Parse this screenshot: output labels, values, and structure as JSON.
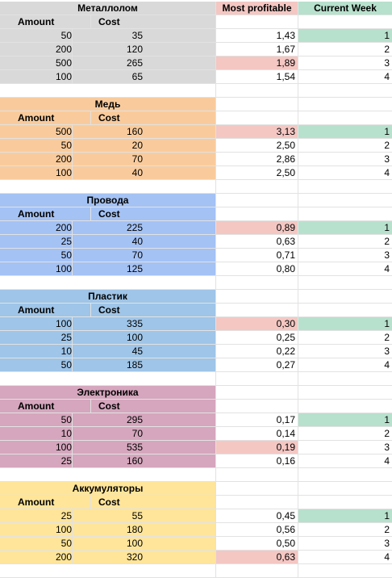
{
  "columns": {
    "most_profitable": "Most profitable",
    "current_week": "Current Week"
  },
  "labels": {
    "amount": "Amount",
    "cost": "Cost"
  },
  "colors": {
    "metal": "#d9d9d9",
    "copper": "#f9cb9c",
    "wires": "#a4c2f4",
    "plastic": "#9fc5e8",
    "electronics": "#d5a6bd",
    "batteries": "#ffe599",
    "best_highlight": "#f4c7c3",
    "current_week_highlight": "#b7e1cd"
  },
  "sections": [
    {
      "title": "Металлолом",
      "color_key": "metal",
      "rows": [
        {
          "amount": "50",
          "cost": "35",
          "ratio": "1,43",
          "week": "1",
          "best": false,
          "current": true
        },
        {
          "amount": "200",
          "cost": "120",
          "ratio": "1,67",
          "week": "2",
          "best": false,
          "current": false
        },
        {
          "amount": "500",
          "cost": "265",
          "ratio": "1,89",
          "week": "3",
          "best": true,
          "current": false
        },
        {
          "amount": "100",
          "cost": "65",
          "ratio": "1,54",
          "week": "4",
          "best": false,
          "current": false
        }
      ]
    },
    {
      "title": "Медь",
      "color_key": "copper",
      "rows": [
        {
          "amount": "500",
          "cost": "160",
          "ratio": "3,13",
          "week": "1",
          "best": true,
          "current": true
        },
        {
          "amount": "50",
          "cost": "20",
          "ratio": "2,50",
          "week": "2",
          "best": false,
          "current": false
        },
        {
          "amount": "200",
          "cost": "70",
          "ratio": "2,86",
          "week": "3",
          "best": false,
          "current": false
        },
        {
          "amount": "100",
          "cost": "40",
          "ratio": "2,50",
          "week": "4",
          "best": false,
          "current": false
        }
      ]
    },
    {
      "title": "Провода",
      "color_key": "wires",
      "rows": [
        {
          "amount": "200",
          "cost": "225",
          "ratio": "0,89",
          "week": "1",
          "best": true,
          "current": true
        },
        {
          "amount": "25",
          "cost": "40",
          "ratio": "0,63",
          "week": "2",
          "best": false,
          "current": false
        },
        {
          "amount": "50",
          "cost": "70",
          "ratio": "0,71",
          "week": "3",
          "best": false,
          "current": false
        },
        {
          "amount": "100",
          "cost": "125",
          "ratio": "0,80",
          "week": "4",
          "best": false,
          "current": false
        }
      ]
    },
    {
      "title": "Пластик",
      "color_key": "plastic",
      "rows": [
        {
          "amount": "100",
          "cost": "335",
          "ratio": "0,30",
          "week": "1",
          "best": true,
          "current": true
        },
        {
          "amount": "25",
          "cost": "100",
          "ratio": "0,25",
          "week": "2",
          "best": false,
          "current": false
        },
        {
          "amount": "10",
          "cost": "45",
          "ratio": "0,22",
          "week": "3",
          "best": false,
          "current": false
        },
        {
          "amount": "50",
          "cost": "185",
          "ratio": "0,27",
          "week": "4",
          "best": false,
          "current": false
        }
      ]
    },
    {
      "title": "Электроника",
      "color_key": "electronics",
      "rows": [
        {
          "amount": "50",
          "cost": "295",
          "ratio": "0,17",
          "week": "1",
          "best": false,
          "current": true
        },
        {
          "amount": "10",
          "cost": "70",
          "ratio": "0,14",
          "week": "2",
          "best": false,
          "current": false
        },
        {
          "amount": "100",
          "cost": "535",
          "ratio": "0,19",
          "week": "3",
          "best": true,
          "current": false
        },
        {
          "amount": "25",
          "cost": "160",
          "ratio": "0,16",
          "week": "4",
          "best": false,
          "current": false
        }
      ]
    },
    {
      "title": "Аккумуляторы",
      "color_key": "batteries",
      "rows": [
        {
          "amount": "25",
          "cost": "55",
          "ratio": "0,45",
          "week": "1",
          "best": false,
          "current": true
        },
        {
          "amount": "100",
          "cost": "180",
          "ratio": "0,56",
          "week": "2",
          "best": false,
          "current": false
        },
        {
          "amount": "50",
          "cost": "100",
          "ratio": "0,50",
          "week": "3",
          "best": false,
          "current": false
        },
        {
          "amount": "200",
          "cost": "320",
          "ratio": "0,63",
          "week": "4",
          "best": true,
          "current": false
        }
      ]
    }
  ]
}
